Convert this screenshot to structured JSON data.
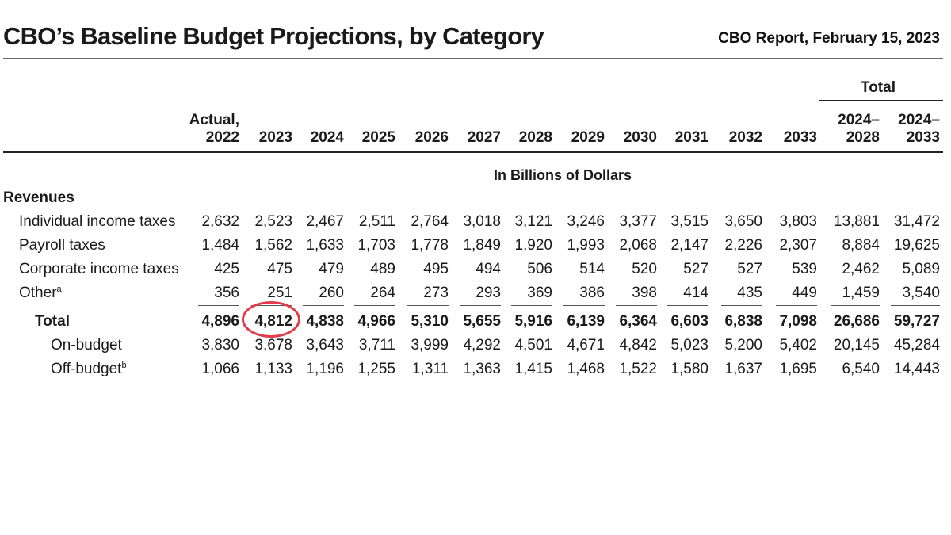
{
  "header": {
    "title": "CBO’s Baseline Budget Projections, by Category",
    "report": "CBO Report, February 15, 2023"
  },
  "table": {
    "total_group_label": "Total",
    "unit": "In Billions of Dollars",
    "section": "Revenues",
    "columns": [
      {
        "line1": "Actual,",
        "line2": "2022"
      },
      {
        "line1": "",
        "line2": "2023"
      },
      {
        "line1": "",
        "line2": "2024"
      },
      {
        "line1": "",
        "line2": "2025"
      },
      {
        "line1": "",
        "line2": "2026"
      },
      {
        "line1": "",
        "line2": "2027"
      },
      {
        "line1": "",
        "line2": "2028"
      },
      {
        "line1": "",
        "line2": "2029"
      },
      {
        "line1": "",
        "line2": "2030"
      },
      {
        "line1": "",
        "line2": "2031"
      },
      {
        "line1": "",
        "line2": "2032"
      },
      {
        "line1": "",
        "line2": "2033"
      },
      {
        "line1": "2024–",
        "line2": "2028"
      },
      {
        "line1": "2024–",
        "line2": "2033"
      }
    ],
    "rows": [
      {
        "label": "Individual income taxes",
        "sup": "",
        "bold": false,
        "values": [
          "2,632",
          "2,523",
          "2,467",
          "2,511",
          "2,764",
          "3,018",
          "3,121",
          "3,246",
          "3,377",
          "3,515",
          "3,650",
          "3,803",
          "13,881",
          "31,472"
        ]
      },
      {
        "label": "Payroll taxes",
        "sup": "",
        "bold": false,
        "values": [
          "1,484",
          "1,562",
          "1,633",
          "1,703",
          "1,778",
          "1,849",
          "1,920",
          "1,993",
          "2,068",
          "2,147",
          "2,226",
          "2,307",
          "8,884",
          "19,625"
        ]
      },
      {
        "label": "Corporate income taxes",
        "sup": "",
        "bold": false,
        "values": [
          "425",
          "475",
          "479",
          "489",
          "495",
          "494",
          "506",
          "514",
          "520",
          "527",
          "527",
          "539",
          "2,462",
          "5,089"
        ]
      },
      {
        "label": "Other",
        "sup": "a",
        "bold": false,
        "values": [
          "356",
          "251",
          "260",
          "264",
          "273",
          "293",
          "369",
          "386",
          "398",
          "414",
          "435",
          "449",
          "1,459",
          "3,540"
        ]
      },
      {
        "label": "Total",
        "sup": "",
        "bold": true,
        "values": [
          "4,896",
          "4,812",
          "4,838",
          "4,966",
          "5,310",
          "5,655",
          "5,916",
          "6,139",
          "6,364",
          "6,603",
          "6,838",
          "7,098",
          "26,686",
          "59,727"
        ]
      },
      {
        "label": "On-budget",
        "sup": "",
        "bold": false,
        "values": [
          "3,830",
          "3,678",
          "3,643",
          "3,711",
          "3,999",
          "4,292",
          "4,501",
          "4,671",
          "4,842",
          "5,023",
          "5,200",
          "5,402",
          "20,145",
          "45,284"
        ]
      },
      {
        "label": "Off-budget",
        "sup": "b",
        "bold": false,
        "values": [
          "1,066",
          "1,133",
          "1,196",
          "1,255",
          "1,311",
          "1,363",
          "1,415",
          "1,468",
          "1,522",
          "1,580",
          "1,637",
          "1,695",
          "6,540",
          "14,443"
        ]
      }
    ],
    "highlight": {
      "row": "Total",
      "column": "2023",
      "color": "#e23b4a"
    }
  }
}
